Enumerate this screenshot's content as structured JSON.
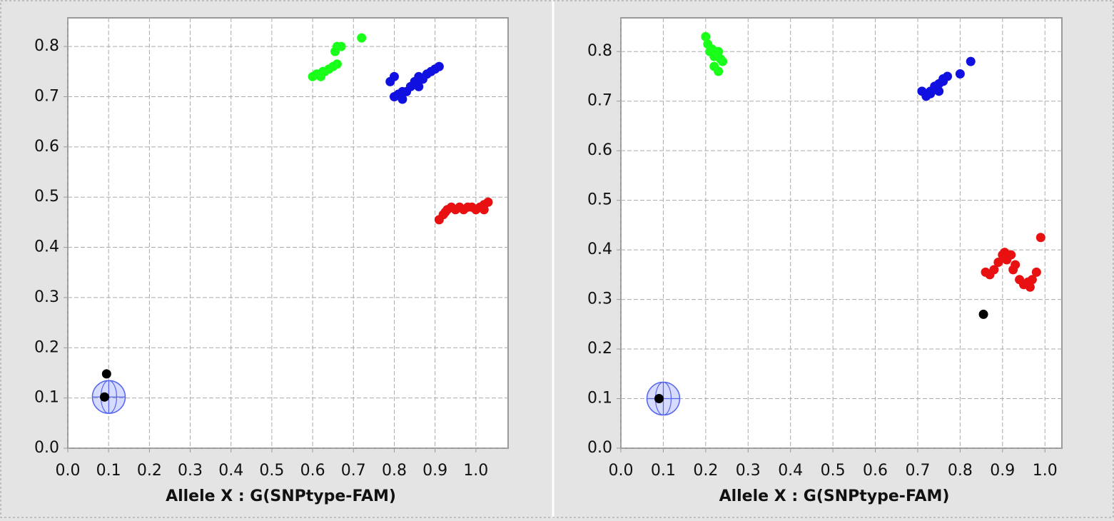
{
  "chart_data": [
    {
      "type": "scatter",
      "x_label": "Allele X : G(SNPtype-FAM)",
      "xlim": [
        0,
        1.079
      ],
      "ylim": [
        0,
        0.857
      ],
      "grid": true,
      "xticks": [
        {
          "value": 0,
          "label": "0.0"
        },
        0.1,
        0.2,
        0.3,
        0.4,
        0.5,
        0.6,
        0.7,
        0.8,
        0.9,
        {
          "value": 1,
          "label": "1.0"
        }
      ],
      "yticks": [
        {
          "value": 0,
          "label": "0.0"
        },
        0.1,
        0.2,
        0.3,
        0.4,
        0.5,
        0.6,
        0.7,
        0.8
      ],
      "series": [
        {
          "color": "#1aff1a",
          "x": [
            0.6,
            0.61,
            0.62,
            0.625,
            0.63,
            0.64,
            0.65,
            0.66,
            0.655,
            0.66,
            0.67,
            0.72
          ],
          "values": [
            0.74,
            0.745,
            0.74,
            0.75,
            0.75,
            0.755,
            0.76,
            0.765,
            0.79,
            0.8,
            0.8,
            0.817
          ]
        },
        {
          "color": "#1010e0",
          "x": [
            0.79,
            0.8,
            0.8,
            0.81,
            0.82,
            0.82,
            0.83,
            0.84,
            0.85,
            0.86,
            0.86,
            0.87,
            0.88,
            0.89,
            0.9,
            0.91
          ],
          "values": [
            0.73,
            0.74,
            0.7,
            0.705,
            0.695,
            0.71,
            0.71,
            0.72,
            0.73,
            0.74,
            0.72,
            0.735,
            0.745,
            0.75,
            0.755,
            0.76
          ]
        },
        {
          "color": "#e81010",
          "x": [
            0.91,
            0.92,
            0.925,
            0.93,
            0.94,
            0.95,
            0.96,
            0.97,
            0.98,
            0.99,
            1.0,
            1.01,
            1.02,
            1.02,
            1.03
          ],
          "values": [
            0.455,
            0.465,
            0.47,
            0.475,
            0.48,
            0.475,
            0.48,
            0.475,
            0.48,
            0.48,
            0.475,
            0.48,
            0.485,
            0.475,
            0.49
          ]
        },
        {
          "color": "#000000",
          "x": [
            0.095,
            0.09
          ],
          "values": [
            0.148,
            0.102
          ]
        }
      ]
    },
    {
      "type": "scatter",
      "x_label": "Allele X : G(SNPtype-FAM)",
      "xlim": [
        0,
        1.04
      ],
      "ylim": [
        0,
        0.868
      ],
      "grid": true,
      "xticks": [
        {
          "value": 0,
          "label": "0.0"
        },
        0.1,
        0.2,
        0.3,
        0.4,
        0.5,
        0.6,
        0.7,
        0.8,
        0.9,
        {
          "value": 1,
          "label": "1.0"
        }
      ],
      "yticks": [
        {
          "value": 0,
          "label": "0.0"
        },
        0.1,
        0.2,
        0.3,
        0.4,
        0.5,
        0.6,
        0.7,
        0.8
      ],
      "series": [
        {
          "color": "#1aff1a",
          "x": [
            0.2,
            0.205,
            0.21,
            0.215,
            0.22,
            0.23,
            0.235,
            0.24,
            0.22,
            0.23
          ],
          "values": [
            0.83,
            0.815,
            0.8,
            0.805,
            0.79,
            0.8,
            0.785,
            0.78,
            0.77,
            0.76
          ]
        },
        {
          "color": "#1010e0",
          "x": [
            0.71,
            0.72,
            0.73,
            0.73,
            0.74,
            0.75,
            0.75,
            0.76,
            0.76,
            0.77,
            0.8,
            0.825
          ],
          "values": [
            0.72,
            0.71,
            0.715,
            0.72,
            0.73,
            0.735,
            0.72,
            0.745,
            0.74,
            0.75,
            0.755,
            0.78
          ]
        },
        {
          "color": "#e81010",
          "x": [
            0.86,
            0.87,
            0.88,
            0.89,
            0.9,
            0.905,
            0.91,
            0.92,
            0.925,
            0.93,
            0.94,
            0.95,
            0.96,
            0.965,
            0.97,
            0.98,
            0.99
          ],
          "values": [
            0.355,
            0.35,
            0.36,
            0.375,
            0.39,
            0.395,
            0.38,
            0.39,
            0.36,
            0.37,
            0.34,
            0.33,
            0.335,
            0.325,
            0.34,
            0.355,
            0.425
          ]
        },
        {
          "color": "#000000",
          "x": [
            0.855,
            0.09
          ],
          "values": [
            0.27,
            0.1
          ]
        }
      ]
    }
  ]
}
